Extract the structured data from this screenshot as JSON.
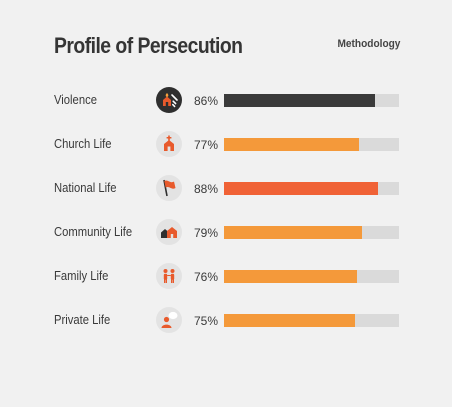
{
  "header": {
    "title": "Profile of Persecution",
    "methodology_label": "Methodology"
  },
  "colors": {
    "background": "#f1f1f1",
    "track": "#dadada",
    "dark_bar": "#3a3a3a",
    "orange_bar": "#f4993a",
    "highlight_bar": "#f06236",
    "icon_red": "#e85a2c"
  },
  "chart_data": {
    "type": "bar",
    "orientation": "horizontal",
    "title": "Profile of Persecution",
    "xlabel": "",
    "ylabel": "",
    "xlim": [
      0,
      100
    ],
    "unit": "%",
    "categories": [
      "Violence",
      "Church Life",
      "National Life",
      "Community Life",
      "Family Life",
      "Private Life"
    ],
    "values": [
      86,
      77,
      88,
      79,
      76,
      75
    ],
    "value_labels": [
      "86%",
      "77%",
      "88%",
      "79%",
      "76%",
      "75%"
    ],
    "bar_colors": [
      "#3a3a3a",
      "#f4993a",
      "#f06236",
      "#f4993a",
      "#f4993a",
      "#f4993a"
    ],
    "icons": [
      "violence-fire-house-icon",
      "church-icon",
      "flag-icon",
      "community-house-icon",
      "family-icon",
      "private-person-icon"
    ]
  }
}
